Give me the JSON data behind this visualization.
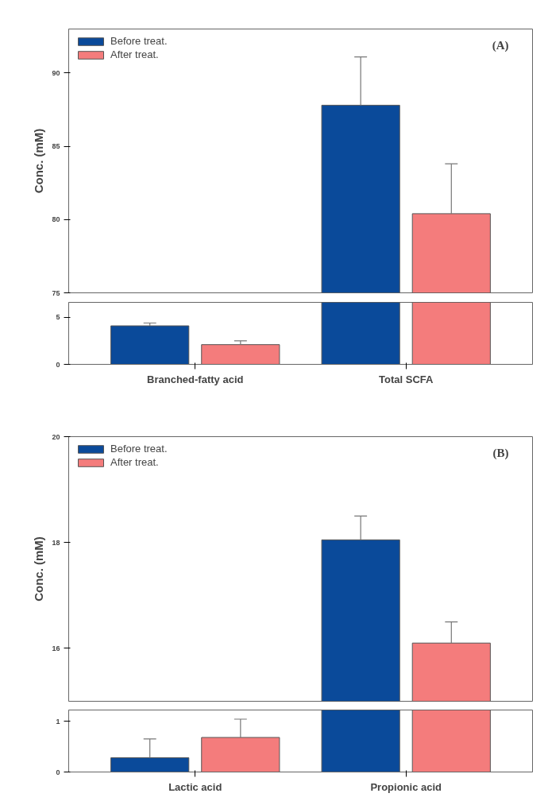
{
  "chart_data": [
    {
      "type": "bar",
      "title": "(A)",
      "ylabel": "Conc. (mM)",
      "categories": [
        null,
        null
      ],
      "ylim": [
        75,
        93
      ],
      "yticks": [
        75,
        80,
        85,
        90
      ],
      "tick_labels": "y",
      "legend": "top left",
      "series": [
        {
          "name": "Before treat.",
          "color": "#0a4a9a",
          "values": [
            null,
            87.8
          ],
          "errors": [
            null,
            3.3
          ]
        },
        {
          "name": "After treat.",
          "color": "#f47c7c",
          "values": [
            null,
            80.4
          ],
          "errors": [
            null,
            3.4
          ]
        }
      ]
    },
    {
      "type": "bar",
      "categories": [
        "Branched-fatty acid",
        "Total SCFA"
      ],
      "ylim": [
        0,
        6.6
      ],
      "yticks": [
        0,
        5
      ],
      "series": [
        {
          "color": "#0a4a9a",
          "values": [
            4.1,
            6.6
          ],
          "errors": [
            0.3,
            null
          ]
        },
        {
          "color": "#f47c7c",
          "values": [
            2.1,
            6.6
          ],
          "errors": [
            0.4,
            null
          ]
        }
      ]
    },
    {
      "type": "bar",
      "title": "(B)",
      "ylabel": "Conc. (mM)",
      "categories": [
        null,
        null
      ],
      "ylim": [
        15,
        20
      ],
      "yticks": [
        16,
        18,
        20
      ],
      "tick_labels": "y",
      "legend": "top left",
      "series": [
        {
          "name": "Before treat.",
          "color": "#0a4a9a",
          "values": [
            null,
            18.05
          ],
          "errors": [
            null,
            0.45
          ]
        },
        {
          "name": "After treat.",
          "color": "#f47c7c",
          "values": [
            null,
            16.1
          ],
          "errors": [
            null,
            0.4
          ]
        }
      ]
    },
    {
      "type": "bar",
      "categories": [
        "Lactic acid",
        "Propionic acid"
      ],
      "ylim": [
        0,
        1.22
      ],
      "yticks": [
        0,
        1
      ],
      "series": [
        {
          "color": "#0a4a9a",
          "values": [
            0.28,
            1.22
          ],
          "errors": [
            0.37,
            null
          ]
        },
        {
          "color": "#f47c7c",
          "values": [
            0.68,
            1.22
          ],
          "errors": [
            0.36,
            null
          ]
        }
      ]
    }
  ]
}
